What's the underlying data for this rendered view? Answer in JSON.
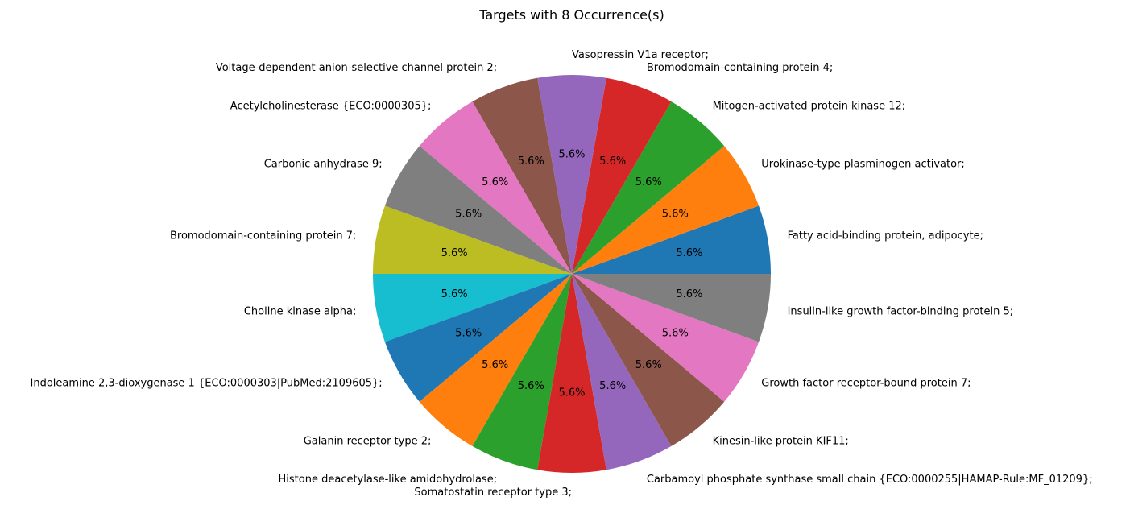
{
  "chart_data": {
    "type": "pie",
    "title": "Targets with 8 Occurrence(s)",
    "categories": [
      "Fatty acid-binding protein, adipocyte;",
      "Urokinase-type plasminogen activator;",
      "Mitogen-activated protein kinase 12;",
      "Bromodomain-containing protein 4;",
      "Vasopressin V1a receptor;",
      "Voltage-dependent anion-selective channel protein 2;",
      "Acetylcholinesterase {ECO:0000305};",
      "Carbonic anhydrase 9;",
      "Bromodomain-containing protein 7;",
      "Choline kinase alpha;",
      "Indoleamine 2,3-dioxygenase 1 {ECO:0000303|PubMed:2109605};",
      "Galanin receptor type 2;",
      "Histone deacetylase-like amidohydrolase;",
      "Somatostatin receptor type 3;",
      "Carbamoyl phosphate synthase small chain {ECO:0000255|HAMAP-Rule:MF_01209};",
      "Kinesin-like protein KIF11;",
      "Growth factor receptor-bound protein 7;",
      "Insulin-like growth factor-binding protein 5;"
    ],
    "values": [
      8,
      8,
      8,
      8,
      8,
      8,
      8,
      8,
      8,
      8,
      8,
      8,
      8,
      8,
      8,
      8,
      8,
      8
    ],
    "percent_labels": [
      "5.6%",
      "5.6%",
      "5.6%",
      "5.6%",
      "5.6%",
      "5.6%",
      "5.6%",
      "5.6%",
      "5.6%",
      "5.6%",
      "5.6%",
      "5.6%",
      "5.6%",
      "5.6%",
      "5.6%",
      "5.6%",
      "5.6%",
      "5.6%"
    ],
    "colors": [
      "#1f77b4",
      "#ff7f0e",
      "#2ca02c",
      "#d62728",
      "#9467bd",
      "#8c564b",
      "#e377c2",
      "#7f7f7f",
      "#bcbd22",
      "#17becf",
      "#1f77b4",
      "#ff7f0e",
      "#2ca02c",
      "#d62728",
      "#9467bd",
      "#8c564b",
      "#e377c2",
      "#7f7f7f"
    ],
    "start_angle_deg": 0,
    "direction": "counterclockwise"
  }
}
